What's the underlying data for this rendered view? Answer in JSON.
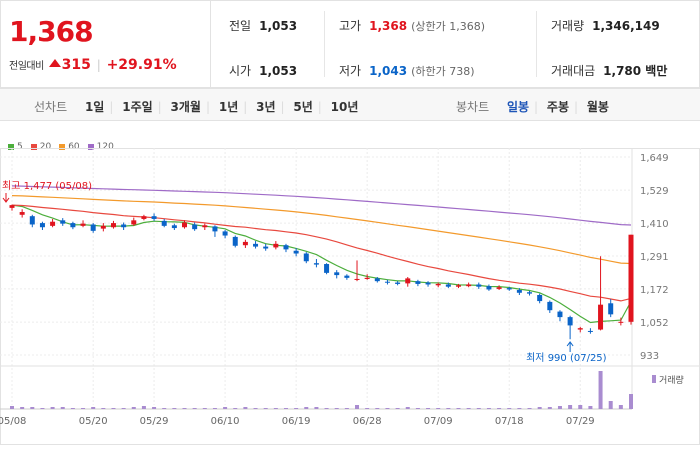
{
  "quote": {
    "current_price": "1,368",
    "change_label": "전일대비",
    "change_amount": "315",
    "change_percent": "+29.91%",
    "up_color": "#e0141e",
    "down_color": "#0a64c8"
  },
  "stats": {
    "prev_close": {
      "label": "전일",
      "value": "1,053"
    },
    "open": {
      "label": "시가",
      "value": "1,053"
    },
    "high": {
      "label": "고가",
      "value": "1,368",
      "note": "(상한가 1,368)"
    },
    "low": {
      "label": "저가",
      "value": "1,043",
      "note": "(하한가 738)"
    },
    "volume": {
      "label": "거래량",
      "value": "1,346,149"
    },
    "trade_value": {
      "label": "거래대금",
      "value": "1,780 백만"
    }
  },
  "toolbar": {
    "line_title": "선차트",
    "line_periods": [
      "1일",
      "1주일",
      "3개월",
      "1년",
      "3년",
      "5년",
      "10년"
    ],
    "candle_title": "봉차트",
    "candle_periods": [
      "일봉",
      "주봉",
      "월봉"
    ],
    "active_candle": "일봉"
  },
  "chart_data": {
    "type": "candlestick",
    "legend": [
      {
        "label": "5",
        "color": "#4cae3c"
      },
      {
        "label": "20",
        "color": "#e8493f"
      },
      {
        "label": "60",
        "color": "#f39a2c"
      },
      {
        "label": "120",
        "color": "#9f6bc7"
      }
    ],
    "y_ticks": [
      "1,649",
      "1,529",
      "1,410",
      "1,291",
      "1,172",
      "1,052",
      "933"
    ],
    "ylim": [
      933,
      1649
    ],
    "x_ticks": [
      "05/08",
      "05/20",
      "05/29",
      "06/10",
      "06/19",
      "06/28",
      "07/09",
      "07/18",
      "07/29"
    ],
    "x_tick_index": [
      0,
      8,
      14,
      21,
      28,
      35,
      42,
      49,
      56
    ],
    "annotations": {
      "high": "최고 1,477 (05/08)",
      "low": "최저 990 (07/25)"
    },
    "volume_legend": "거래량",
    "candles": [
      [
        1465,
        1475,
        1477,
        1455
      ],
      [
        1440,
        1450,
        1460,
        1430
      ],
      [
        1435,
        1405,
        1440,
        1395
      ],
      [
        1410,
        1395,
        1415,
        1385
      ],
      [
        1400,
        1415,
        1425,
        1395
      ],
      [
        1420,
        1408,
        1428,
        1400
      ],
      [
        1410,
        1395,
        1415,
        1388
      ],
      [
        1400,
        1408,
        1420,
        1395
      ],
      [
        1405,
        1382,
        1410,
        1375
      ],
      [
        1390,
        1400,
        1410,
        1380
      ],
      [
        1395,
        1410,
        1418,
        1390
      ],
      [
        1405,
        1395,
        1412,
        1385
      ],
      [
        1405,
        1420,
        1430,
        1400
      ],
      [
        1425,
        1435,
        1440,
        1420
      ],
      [
        1435,
        1425,
        1445,
        1418
      ],
      [
        1418,
        1400,
        1425,
        1395
      ],
      [
        1402,
        1392,
        1408,
        1385
      ],
      [
        1395,
        1412,
        1420,
        1390
      ],
      [
        1405,
        1388,
        1412,
        1382
      ],
      [
        1395,
        1402,
        1408,
        1385
      ],
      [
        1398,
        1380,
        1402,
        1360
      ],
      [
        1380,
        1365,
        1385,
        1355
      ],
      [
        1360,
        1328,
        1365,
        1322
      ],
      [
        1330,
        1342,
        1350,
        1320
      ],
      [
        1335,
        1325,
        1345,
        1318
      ],
      [
        1325,
        1318,
        1335,
        1310
      ],
      [
        1322,
        1335,
        1345,
        1315
      ],
      [
        1330,
        1315,
        1335,
        1305
      ],
      [
        1310,
        1300,
        1320,
        1290
      ],
      [
        1300,
        1272,
        1305,
        1265
      ],
      [
        1265,
        1260,
        1280,
        1250
      ],
      [
        1262,
        1230,
        1265,
        1225
      ],
      [
        1232,
        1222,
        1240,
        1210
      ],
      [
        1220,
        1212,
        1225,
        1205
      ],
      [
        1205,
        1208,
        1275,
        1200
      ],
      [
        1208,
        1212,
        1225,
        1205
      ],
      [
        1210,
        1200,
        1215,
        1195
      ],
      [
        1198,
        1195,
        1205,
        1188
      ],
      [
        1195,
        1190,
        1200,
        1185
      ],
      [
        1192,
        1210,
        1215,
        1180
      ],
      [
        1200,
        1190,
        1205,
        1182
      ],
      [
        1195,
        1188,
        1200,
        1180
      ],
      [
        1185,
        1190,
        1195,
        1178
      ],
      [
        1188,
        1180,
        1195,
        1175
      ],
      [
        1180,
        1185,
        1190,
        1175
      ],
      [
        1182,
        1188,
        1195,
        1178
      ],
      [
        1188,
        1180,
        1195,
        1172
      ],
      [
        1182,
        1170,
        1188,
        1165
      ],
      [
        1172,
        1178,
        1185,
        1168
      ],
      [
        1175,
        1170,
        1180,
        1165
      ],
      [
        1168,
        1158,
        1175,
        1150
      ],
      [
        1160,
        1155,
        1165,
        1148
      ],
      [
        1150,
        1128,
        1155,
        1120
      ],
      [
        1125,
        1095,
        1130,
        1085
      ],
      [
        1090,
        1070,
        1095,
        1055
      ],
      [
        1070,
        1040,
        1075,
        990
      ],
      [
        1025,
        1030,
        1035,
        1015
      ],
      [
        1020,
        1018,
        1030,
        1010
      ],
      [
        1025,
        1115,
        1290,
        1022
      ],
      [
        1120,
        1080,
        1135,
        1070
      ],
      [
        1050,
        1053,
        1068,
        1040
      ],
      [
        1053,
        1368,
        1368,
        1043
      ]
    ],
    "volume": [
      3,
      2,
      2,
      1,
      2,
      2,
      1,
      1,
      2,
      1,
      1,
      1,
      2,
      3,
      2,
      1,
      1,
      1,
      1,
      1,
      1,
      2,
      1,
      2,
      1,
      1,
      1,
      1,
      1,
      2,
      2,
      1,
      1,
      1,
      4,
      1,
      1,
      1,
      1,
      2,
      1,
      1,
      1,
      1,
      1,
      1,
      1,
      1,
      1,
      1,
      1,
      1,
      2,
      2,
      3,
      4,
      4,
      3,
      38,
      8,
      4,
      15
    ]
  }
}
